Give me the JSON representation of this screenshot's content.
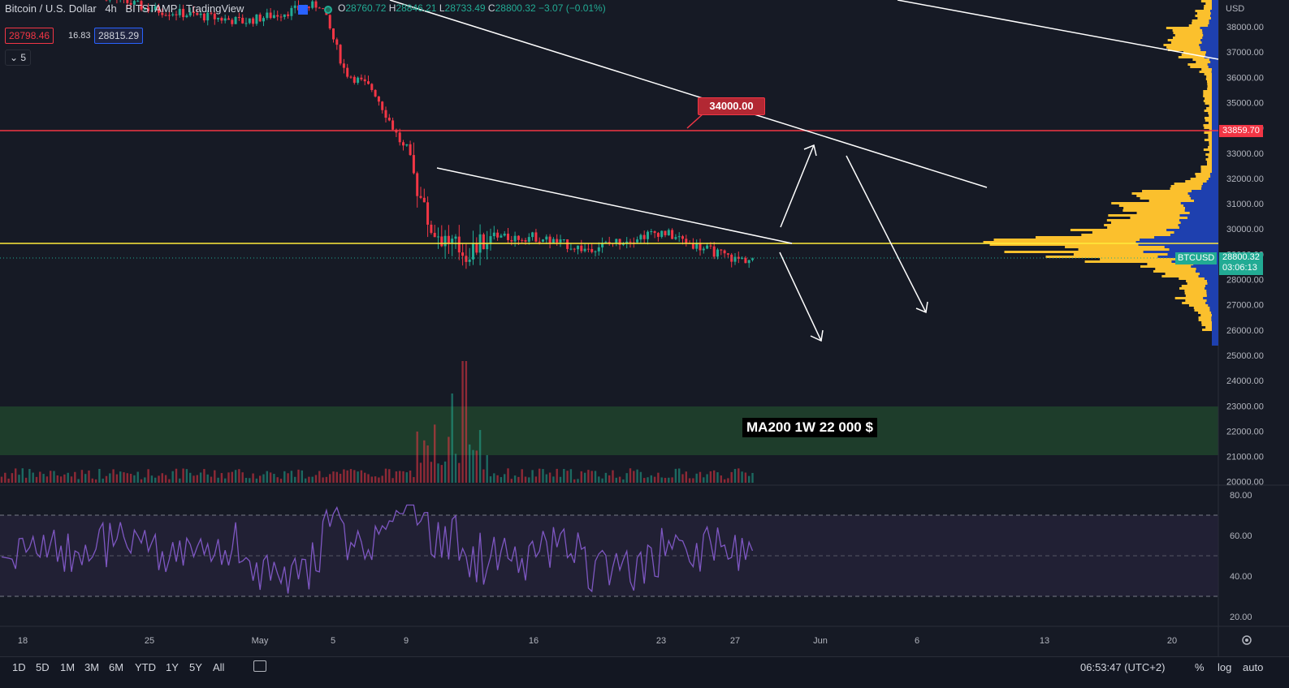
{
  "header": {
    "symbol_title": "Bitcoin / U.S. Dollar",
    "interval": "4h",
    "exchange": "BITSTAMP",
    "platform": "TradingView",
    "ohlc": {
      "o_label": "O",
      "o": "28760.72",
      "h_label": "H",
      "h": "28846.21",
      "l_label": "L",
      "l": "28733.49",
      "c_label": "C",
      "c": "28800.32",
      "change": "−3.07 (−0.01%)"
    },
    "bid": "28798.46",
    "spread": "16.83",
    "ask": "28815.29",
    "collapse_count": "5"
  },
  "price_axis": {
    "currency": "USD",
    "ticks": [
      "38000.00",
      "37000.00",
      "36000.00",
      "35000.00",
      "34000.00",
      "33000.00",
      "32000.00",
      "31000.00",
      "30000.00",
      "29000.00",
      "28000.00",
      "27000.00",
      "26000.00",
      "25000.00",
      "24000.00",
      "23000.00",
      "22000.00",
      "21000.00",
      "20000.00"
    ],
    "red_level_label": "33859.70",
    "last_price": "28800.32",
    "countdown": "03:06:13",
    "symbol_tag": "BTCUSD"
  },
  "rsi_axis": {
    "ticks": [
      "80.00",
      "60.00",
      "40.00",
      "20.00"
    ]
  },
  "time_axis": {
    "ticks": [
      "18",
      "25",
      "May",
      "5",
      "9",
      "16",
      "23",
      "27",
      "Jun",
      "6",
      "13",
      "20"
    ]
  },
  "annotations": {
    "target_label": "34000.00",
    "ma_label": "MA200 1W 22 000 $"
  },
  "bottom_toolbar": {
    "ranges": [
      "1D",
      "5D",
      "1M",
      "3M",
      "6M",
      "YTD",
      "1Y",
      "5Y",
      "All"
    ],
    "clock": "06:53:47 (UTC+2)",
    "percent": "%",
    "log": "log",
    "auto": "auto"
  },
  "colors": {
    "bg": "#161a25",
    "up": "#22ab94",
    "down": "#f23645",
    "ma_zone": "#1e3d2b",
    "rsi": "#7e57c2",
    "yellow_line": "#ffeb3b",
    "vp_yellow": "#fbc02d",
    "vp_blue": "#1e40af"
  },
  "chart_data": {
    "type": "candlestick",
    "series_description": "BTCUSD 4h price",
    "ylim": [
      20000,
      38800
    ],
    "key_levels": {
      "red_horizontal": 33859.7,
      "yellow_horizontal": 29500,
      "ma200_zone": [
        21000,
        23000
      ],
      "last_close": 28800.32
    },
    "path_x": [
      "Apr 14",
      "Apr 20",
      "Apr 27",
      "May 2",
      "May 5",
      "May 6",
      "May 8",
      "May 9",
      "May 10",
      "May 12",
      "May 13",
      "May 16",
      "May 19",
      "May 23",
      "May 25",
      "May 27",
      "May 28"
    ],
    "path_close": [
      40000,
      39500,
      38700,
      38200,
      38900,
      36200,
      35500,
      33000,
      30000,
      29000,
      29600,
      29700,
      29200,
      29900,
      29300,
      28800,
      28800
    ],
    "rsi": {
      "ylim": [
        15,
        85
      ],
      "overbought": 70,
      "middle": 50,
      "oversold": 30
    }
  }
}
